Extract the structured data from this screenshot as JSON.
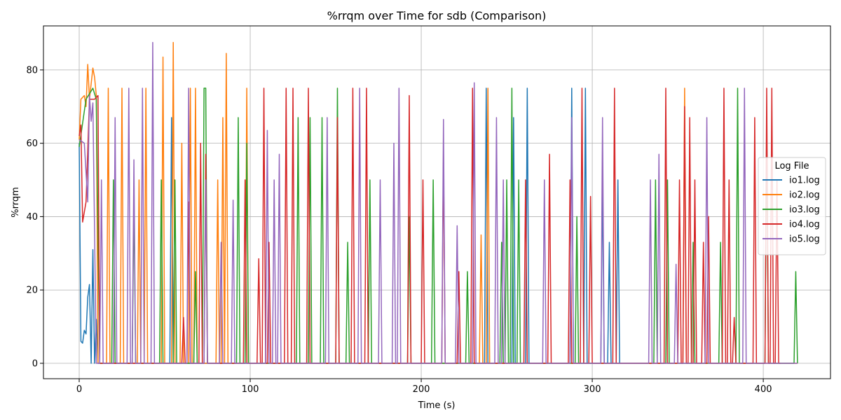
{
  "chart_data": {
    "type": "line",
    "title": "%rrqm over Time for sdb (Comparison)",
    "x_label": "Time (s)",
    "y_label": "%rrqm",
    "xlim": [
      -20.9,
      439.3
    ],
    "ylim": [
      -4.2,
      92.0
    ],
    "xticks": [
      0,
      100,
      200,
      300,
      400
    ],
    "yticks": [
      0,
      20,
      40,
      60,
      80
    ],
    "grid": true,
    "legend_title": "Log File",
    "legend_position": "right",
    "series": [
      {
        "name": "io1.log",
        "color": "#1f77b4",
        "x": [
          0,
          1,
          2,
          3,
          4,
          5,
          6,
          7,
          8,
          9,
          10,
          11,
          53,
          54,
          55,
          237,
          238,
          239,
          253,
          254,
          255,
          261,
          262,
          263,
          287,
          288,
          289,
          295,
          296,
          297,
          305,
          306,
          307,
          309,
          310,
          311,
          314,
          315,
          316
        ],
        "values": [
          60,
          6,
          5.5,
          9,
          8,
          18,
          21.5,
          0,
          31,
          0,
          12,
          0,
          0,
          67,
          0,
          0,
          75,
          0,
          0,
          67,
          0,
          0,
          75,
          0,
          0,
          75,
          0,
          0,
          75,
          0,
          0,
          50,
          0,
          0,
          33,
          0,
          0,
          50,
          0
        ]
      },
      {
        "name": "io2.log",
        "color": "#ff7f0e",
        "x": [
          0,
          1,
          3,
          4,
          5,
          6,
          8,
          9,
          10,
          11,
          16,
          17,
          18,
          24,
          25,
          26,
          34,
          35,
          36,
          38,
          39,
          40,
          48,
          49,
          50,
          54,
          55,
          56,
          59,
          60,
          61,
          64,
          65,
          66,
          67,
          68,
          69,
          80,
          81,
          82,
          83,
          84,
          85,
          86,
          87,
          97,
          98,
          99,
          234,
          235,
          236,
          238,
          239,
          240,
          353,
          354,
          355,
          420
        ],
        "values": [
          61,
          72,
          73,
          70,
          81.5,
          72,
          80.5,
          78,
          73,
          0,
          0,
          75,
          0,
          0,
          75,
          0,
          0,
          50,
          0,
          0,
          75,
          0,
          0,
          83.5,
          0,
          0,
          87.5,
          0,
          0,
          60,
          0,
          0,
          75,
          0,
          0,
          75,
          0,
          0,
          50,
          0,
          0,
          67,
          0,
          84.5,
          0,
          0,
          75,
          0,
          0,
          35,
          0,
          0,
          75,
          0,
          0,
          75,
          0,
          0
        ]
      },
      {
        "name": "io3.log",
        "color": "#2ca02c",
        "x": [
          0,
          4,
          8,
          10,
          12,
          19,
          20,
          21,
          31,
          32,
          33,
          47,
          48,
          49,
          55,
          56,
          57,
          67,
          68,
          69,
          72,
          73,
          74,
          75,
          92,
          93,
          94,
          97,
          98,
          99,
          127,
          128,
          129,
          134,
          135,
          136,
          141,
          142,
          143,
          150,
          151,
          152,
          156,
          157,
          158,
          169,
          170,
          171,
          192,
          193,
          194,
          206,
          207,
          208,
          226,
          227,
          228,
          246,
          247,
          248,
          249,
          250,
          251,
          252,
          253,
          254,
          256,
          257,
          258,
          290,
          291,
          292,
          336,
          337,
          338,
          343,
          344,
          345,
          358,
          359,
          360,
          374,
          375,
          376,
          384,
          385,
          386,
          401,
          402,
          403,
          418,
          419,
          420
        ],
        "values": [
          59,
          72,
          75,
          72,
          0,
          0,
          50,
          0,
          0,
          45,
          0,
          0,
          50,
          0,
          0,
          50,
          0,
          0,
          25,
          0,
          0,
          75,
          75,
          0,
          0,
          67,
          0,
          0,
          60,
          0,
          0,
          67,
          0,
          0,
          67,
          0,
          0,
          67,
          0,
          0,
          75,
          0,
          0,
          33,
          0,
          0,
          50,
          0,
          0,
          40,
          0,
          0,
          50,
          0,
          0,
          25,
          0,
          0,
          33,
          0,
          0,
          50,
          0,
          0,
          75,
          0,
          0,
          50,
          0,
          0,
          40,
          0,
          0,
          50,
          0,
          0,
          50,
          0,
          0,
          33,
          0,
          0,
          33,
          0,
          0,
          75,
          0,
          0,
          67,
          0,
          0,
          25,
          0
        ]
      },
      {
        "name": "io4.log",
        "color": "#d62728",
        "x": [
          0,
          1,
          2,
          4,
          6,
          9,
          11,
          12,
          60,
          61,
          62,
          63,
          64,
          65,
          70,
          71,
          72,
          73,
          74,
          75,
          96,
          97,
          98,
          104,
          105,
          106,
          107,
          108,
          109,
          110,
          111,
          112,
          120,
          121,
          122,
          124,
          125,
          126,
          133,
          134,
          135,
          150,
          151,
          152,
          159,
          160,
          161,
          167,
          168,
          169,
          192,
          193,
          194,
          200,
          201,
          202,
          212,
          213,
          214,
          221,
          222,
          223,
          229,
          230,
          231,
          260,
          261,
          262,
          274,
          275,
          276,
          286,
          287,
          288,
          293,
          294,
          295,
          298,
          299,
          300,
          312,
          313,
          314,
          342,
          343,
          344,
          350,
          351,
          352,
          353,
          354,
          355,
          356,
          357,
          358,
          359,
          360,
          361,
          364,
          365,
          366,
          367,
          368,
          369,
          376,
          377,
          378,
          379,
          380,
          381,
          382,
          383,
          384,
          394,
          395,
          396,
          401,
          402,
          403,
          404,
          405,
          406,
          407,
          408,
          409,
          410
        ],
        "values": [
          62,
          65,
          38.5,
          44,
          72,
          72,
          73,
          0,
          0,
          12.5,
          0,
          0,
          44,
          0,
          0,
          60,
          0,
          0,
          57,
          0,
          0,
          50,
          0,
          0,
          28.5,
          0,
          0,
          75,
          0,
          0,
          33,
          0,
          0,
          75,
          0,
          0,
          75,
          0,
          0,
          75,
          0,
          0,
          67,
          0,
          0,
          75,
          0,
          0,
          75,
          0,
          0,
          73,
          0,
          0,
          50,
          0,
          0,
          57,
          0,
          0,
          25,
          0,
          0,
          75,
          0,
          0,
          50,
          0,
          0,
          57,
          0,
          0,
          50,
          0,
          0,
          75,
          0,
          0,
          45.5,
          0,
          0,
          75,
          0,
          0,
          75,
          0,
          0,
          50,
          0,
          0,
          70,
          0,
          0,
          67,
          0,
          0,
          50,
          0,
          0,
          33,
          0,
          0,
          40,
          0,
          0,
          75,
          0,
          0,
          50,
          0,
          0,
          12.5,
          0,
          0,
          67,
          0,
          0,
          75,
          0,
          0,
          75,
          0,
          0,
          50,
          0,
          0
        ]
      },
      {
        "name": "io5.log",
        "color": "#9467bd",
        "x": [
          0,
          3,
          5,
          6,
          7,
          8,
          10,
          12,
          13,
          14,
          20,
          21,
          22,
          28,
          29,
          30,
          31,
          32,
          33,
          36,
          37,
          38,
          42,
          43,
          44,
          63,
          64,
          65,
          73,
          74,
          75,
          82,
          83,
          84,
          89,
          90,
          91,
          109,
          110,
          111,
          113,
          114,
          115,
          116,
          117,
          118,
          144,
          145,
          146,
          163,
          164,
          165,
          175,
          176,
          177,
          183,
          184,
          185,
          186,
          187,
          188,
          212,
          213,
          214,
          220,
          221,
          222,
          230,
          231,
          232,
          243,
          244,
          245,
          247,
          248,
          249,
          271,
          272,
          273,
          287,
          288,
          289,
          305,
          306,
          307,
          333,
          334,
          335,
          338,
          339,
          340,
          348,
          349,
          350,
          366,
          367,
          368,
          388,
          389,
          390,
          420
        ],
        "values": [
          61,
          60,
          44,
          73,
          66,
          71,
          0,
          0,
          50,
          0,
          0,
          67,
          0,
          0,
          75,
          0,
          0,
          55.5,
          0,
          0,
          75,
          0,
          0,
          87.5,
          0,
          0,
          75,
          0,
          0,
          50,
          0,
          0,
          33,
          0,
          0,
          44.5,
          0,
          0,
          63.5,
          0,
          0,
          50,
          0,
          0,
          57,
          0,
          0,
          67,
          0,
          0,
          75,
          0,
          0,
          50,
          0,
          0,
          60,
          0,
          0,
          75,
          0,
          0,
          66.5,
          0,
          0,
          37.5,
          0,
          0,
          76.5,
          0,
          0,
          67,
          0,
          0,
          50,
          0,
          0,
          50,
          0,
          0,
          67,
          0,
          0,
          67,
          0,
          0,
          50,
          0,
          0,
          57,
          0,
          0,
          27,
          0,
          0,
          67,
          0,
          0,
          75,
          0,
          0
        ]
      }
    ]
  }
}
